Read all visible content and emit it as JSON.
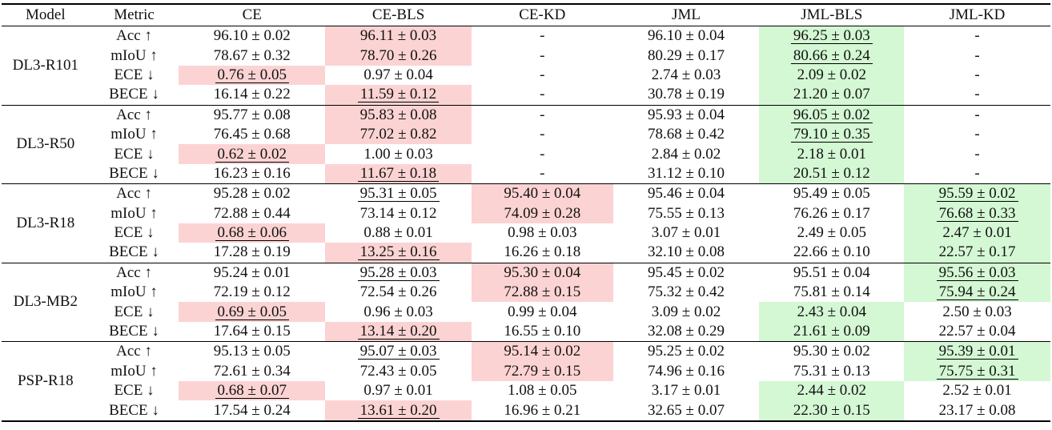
{
  "table": {
    "headers": [
      "Model",
      "Metric",
      "CE",
      "CE-BLS",
      "CE-KD",
      "JML",
      "JML-BLS",
      "JML-KD"
    ],
    "groups": [
      {
        "model": "DL3-R101",
        "rows": [
          {
            "metric": "Acc ↑",
            "cells": [
              {
                "text": "96.10 ± 0.02"
              },
              {
                "text": "96.11 ± 0.03",
                "hl": "red"
              },
              {
                "text": "-"
              },
              {
                "text": "96.10 ± 0.04"
              },
              {
                "text": "96.25 ± 0.03",
                "hl": "green",
                "ul": true
              },
              {
                "text": "-"
              }
            ]
          },
          {
            "metric": "mIoU ↑",
            "cells": [
              {
                "text": "78.67 ± 0.32"
              },
              {
                "text": "78.70 ± 0.26",
                "hl": "red"
              },
              {
                "text": "-"
              },
              {
                "text": "80.29 ± 0.17"
              },
              {
                "text": "80.66 ± 0.24",
                "hl": "green",
                "ul": true
              },
              {
                "text": "-"
              }
            ]
          },
          {
            "metric": "ECE ↓",
            "cells": [
              {
                "text": "0.76 ± 0.05",
                "hl": "red",
                "ul": true
              },
              {
                "text": "0.97 ± 0.04"
              },
              {
                "text": "-"
              },
              {
                "text": "2.74 ± 0.03"
              },
              {
                "text": "2.09 ± 0.02",
                "hl": "green"
              },
              {
                "text": "-"
              }
            ]
          },
          {
            "metric": "BECE ↓",
            "cells": [
              {
                "text": "16.14 ± 0.22"
              },
              {
                "text": "11.59 ± 0.12",
                "hl": "red",
                "ul": true
              },
              {
                "text": "-"
              },
              {
                "text": "30.78 ± 0.19"
              },
              {
                "text": "21.20 ± 0.07",
                "hl": "green"
              },
              {
                "text": "-"
              }
            ]
          }
        ]
      },
      {
        "model": "DL3-R50",
        "rows": [
          {
            "metric": "Acc ↑",
            "cells": [
              {
                "text": "95.77 ± 0.08"
              },
              {
                "text": "95.83 ± 0.08",
                "hl": "red"
              },
              {
                "text": "-"
              },
              {
                "text": "95.93 ± 0.04"
              },
              {
                "text": "96.05 ± 0.02",
                "hl": "green",
                "ul": true
              },
              {
                "text": "-"
              }
            ]
          },
          {
            "metric": "mIoU ↑",
            "cells": [
              {
                "text": "76.45 ± 0.68"
              },
              {
                "text": "77.02 ± 0.82",
                "hl": "red"
              },
              {
                "text": "-"
              },
              {
                "text": "78.68 ± 0.42"
              },
              {
                "text": "79.10 ± 0.35",
                "hl": "green",
                "ul": true
              },
              {
                "text": "-"
              }
            ]
          },
          {
            "metric": "ECE ↓",
            "cells": [
              {
                "text": "0.62 ± 0.02",
                "hl": "red",
                "ul": true
              },
              {
                "text": "1.00 ± 0.03"
              },
              {
                "text": "-"
              },
              {
                "text": "2.84 ± 0.02"
              },
              {
                "text": "2.18 ± 0.01",
                "hl": "green"
              },
              {
                "text": "-"
              }
            ]
          },
          {
            "metric": "BECE ↓",
            "cells": [
              {
                "text": "16.23 ± 0.16"
              },
              {
                "text": "11.67 ± 0.18",
                "hl": "red",
                "ul": true
              },
              {
                "text": "-"
              },
              {
                "text": "31.12 ± 0.10"
              },
              {
                "text": "20.51 ± 0.12",
                "hl": "green"
              },
              {
                "text": "-"
              }
            ]
          }
        ]
      },
      {
        "model": "DL3-R18",
        "rows": [
          {
            "metric": "Acc ↑",
            "cells": [
              {
                "text": "95.28 ± 0.02"
              },
              {
                "text": "95.31 ± 0.05",
                "ul": true
              },
              {
                "text": "95.40 ± 0.04",
                "hl": "red"
              },
              {
                "text": "95.46 ± 0.04"
              },
              {
                "text": "95.49 ± 0.05"
              },
              {
                "text": "95.59 ± 0.02",
                "hl": "green",
                "ul": true
              }
            ]
          },
          {
            "metric": "mIoU ↑",
            "cells": [
              {
                "text": "72.88 ± 0.44"
              },
              {
                "text": "73.14 ± 0.12"
              },
              {
                "text": "74.09 ± 0.28",
                "hl": "red"
              },
              {
                "text": "75.55 ± 0.13"
              },
              {
                "text": "76.26 ± 0.17"
              },
              {
                "text": "76.68 ± 0.33",
                "hl": "green",
                "ul": true
              }
            ]
          },
          {
            "metric": "ECE ↓",
            "cells": [
              {
                "text": "0.68 ± 0.06",
                "hl": "red",
                "ul": true
              },
              {
                "text": "0.88 ± 0.01"
              },
              {
                "text": "0.98 ± 0.03"
              },
              {
                "text": "3.07 ± 0.01"
              },
              {
                "text": "2.49 ± 0.05"
              },
              {
                "text": "2.47 ± 0.01",
                "hl": "green"
              }
            ]
          },
          {
            "metric": "BECE ↓",
            "cells": [
              {
                "text": "17.28 ± 0.19"
              },
              {
                "text": "13.25 ± 0.16",
                "hl": "red",
                "ul": true
              },
              {
                "text": "16.26 ± 0.18"
              },
              {
                "text": "32.10 ± 0.08"
              },
              {
                "text": "22.66 ± 0.10"
              },
              {
                "text": "22.57 ± 0.17",
                "hl": "green"
              }
            ]
          }
        ]
      },
      {
        "model": "DL3-MB2",
        "rows": [
          {
            "metric": "Acc ↑",
            "cells": [
              {
                "text": "95.24 ± 0.01"
              },
              {
                "text": "95.28 ± 0.03",
                "ul": true
              },
              {
                "text": "95.30 ± 0.04",
                "hl": "red"
              },
              {
                "text": "95.45 ± 0.02"
              },
              {
                "text": "95.51 ± 0.04"
              },
              {
                "text": "95.56 ± 0.03",
                "hl": "green",
                "ul": true
              }
            ]
          },
          {
            "metric": "mIoU ↑",
            "cells": [
              {
                "text": "72.19 ± 0.12"
              },
              {
                "text": "72.54 ± 0.26"
              },
              {
                "text": "72.88 ± 0.15",
                "hl": "red"
              },
              {
                "text": "75.32 ± 0.42"
              },
              {
                "text": "75.81 ± 0.14"
              },
              {
                "text": "75.94 ± 0.24",
                "hl": "green",
                "ul": true
              }
            ]
          },
          {
            "metric": "ECE ↓",
            "cells": [
              {
                "text": "0.69 ± 0.05",
                "hl": "red",
                "ul": true
              },
              {
                "text": "0.96 ± 0.03"
              },
              {
                "text": "0.99 ± 0.04"
              },
              {
                "text": "3.09 ± 0.02"
              },
              {
                "text": "2.43 ± 0.04",
                "hl": "green"
              },
              {
                "text": "2.50 ± 0.03"
              }
            ]
          },
          {
            "metric": "BECE ↓",
            "cells": [
              {
                "text": "17.64 ± 0.15"
              },
              {
                "text": "13.14 ± 0.20",
                "hl": "red",
                "ul": true
              },
              {
                "text": "16.55 ± 0.10"
              },
              {
                "text": "32.08 ± 0.29"
              },
              {
                "text": "21.61 ± 0.09",
                "hl": "green"
              },
              {
                "text": "22.57 ± 0.04"
              }
            ]
          }
        ]
      },
      {
        "model": "PSP-R18",
        "rows": [
          {
            "metric": "Acc ↑",
            "cells": [
              {
                "text": "95.13 ± 0.05"
              },
              {
                "text": "95.07 ± 0.03",
                "ul": true
              },
              {
                "text": "95.14 ± 0.02",
                "hl": "red"
              },
              {
                "text": "95.25 ± 0.02"
              },
              {
                "text": "95.30 ± 0.02"
              },
              {
                "text": "95.39 ± 0.01",
                "hl": "green",
                "ul": true
              }
            ]
          },
          {
            "metric": "mIoU ↑",
            "cells": [
              {
                "text": "72.61 ± 0.34"
              },
              {
                "text": "72.43 ± 0.05"
              },
              {
                "text": "72.79 ± 0.15",
                "hl": "red"
              },
              {
                "text": "74.96 ± 0.16"
              },
              {
                "text": "75.31 ± 0.13"
              },
              {
                "text": "75.75 ± 0.31",
                "hl": "green",
                "ul": true
              }
            ]
          },
          {
            "metric": "ECE ↓",
            "cells": [
              {
                "text": "0.68 ± 0.07",
                "hl": "red",
                "ul": true
              },
              {
                "text": "0.97 ± 0.01"
              },
              {
                "text": "1.08 ± 0.05"
              },
              {
                "text": "3.17 ± 0.01"
              },
              {
                "text": "2.44 ± 0.02",
                "hl": "green"
              },
              {
                "text": "2.52 ± 0.01"
              }
            ]
          },
          {
            "metric": "BECE ↓",
            "cells": [
              {
                "text": "17.54 ± 0.24"
              },
              {
                "text": "13.61 ± 0.20",
                "hl": "red",
                "ul": true
              },
              {
                "text": "16.96 ± 0.21"
              },
              {
                "text": "32.65 ± 0.07"
              },
              {
                "text": "22.30 ± 0.15",
                "hl": "green"
              },
              {
                "text": "23.17 ± 0.08"
              }
            ]
          }
        ]
      }
    ]
  }
}
